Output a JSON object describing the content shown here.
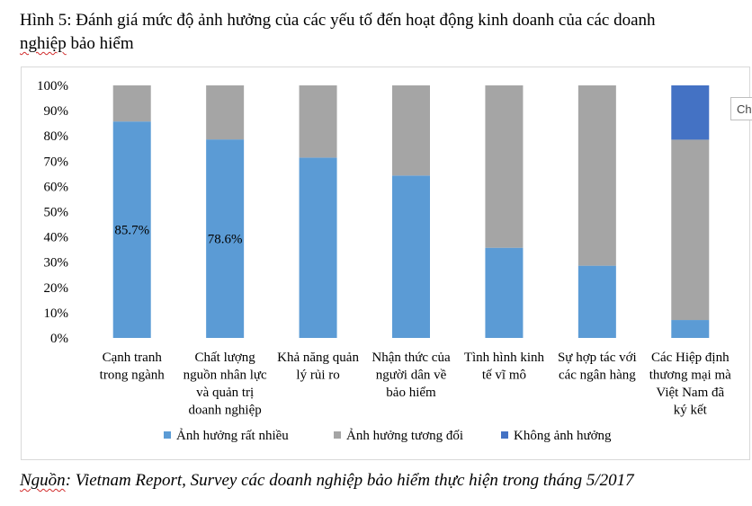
{
  "figure": {
    "title_prefix": "Hình 5: Đánh giá mức độ ảnh hưởng của các yếu tố đến hoạt động kinh doanh của các doanh",
    "title_word_underlined": "nghiệp",
    "title_suffix": " bảo hiểm",
    "source_underlined": "Nguồn",
    "source_rest": ": Vietnam Report, Survey các doanh nghiệp bảo hiểm thực hiện trong tháng 5/2017",
    "side_tab_text": "Ch"
  },
  "colors": {
    "series_1": "#5b9bd5",
    "series_2": "#a5a5a5",
    "series_3": "#4472c4"
  },
  "chart_data": {
    "type": "bar",
    "stacked": true,
    "percent": true,
    "categories": [
      [
        "Cạnh tranh",
        "trong ngành"
      ],
      [
        "Chất lượng",
        "nguồn nhân lực",
        "và quản trị",
        "doanh nghiệp"
      ],
      [
        "Khả năng quản",
        "lý rủi ro"
      ],
      [
        "Nhận thức của",
        "người dân về",
        "bảo hiểm"
      ],
      [
        "Tình hình kinh",
        "tế vĩ mô"
      ],
      [
        "Sự hợp tác với",
        "các ngân hàng"
      ],
      [
        "Các Hiệp định",
        "thương mại mà",
        "Việt Nam đã",
        "ký kết"
      ]
    ],
    "series": [
      {
        "name": "Ảnh hưởng rất nhiều",
        "values": [
          85.7,
          78.6,
          71.4,
          64.3,
          35.7,
          28.6,
          7.1
        ]
      },
      {
        "name": "Ảnh hưởng tương đối",
        "values": [
          14.3,
          21.4,
          28.6,
          35.7,
          64.3,
          71.4,
          71.4
        ]
      },
      {
        "name": "Không ảnh hưởng",
        "values": [
          0,
          0,
          0,
          0,
          0,
          0,
          21.5
        ]
      }
    ],
    "data_labels": [
      {
        "category_index": 0,
        "text": "85.7%"
      },
      {
        "category_index": 1,
        "text": "78.6%"
      }
    ],
    "y_ticks": [
      "0%",
      "10%",
      "20%",
      "30%",
      "40%",
      "50%",
      "60%",
      "70%",
      "80%",
      "90%",
      "100%"
    ],
    "ylim": [
      0,
      100
    ],
    "grid": false,
    "legend_position": "bottom"
  }
}
